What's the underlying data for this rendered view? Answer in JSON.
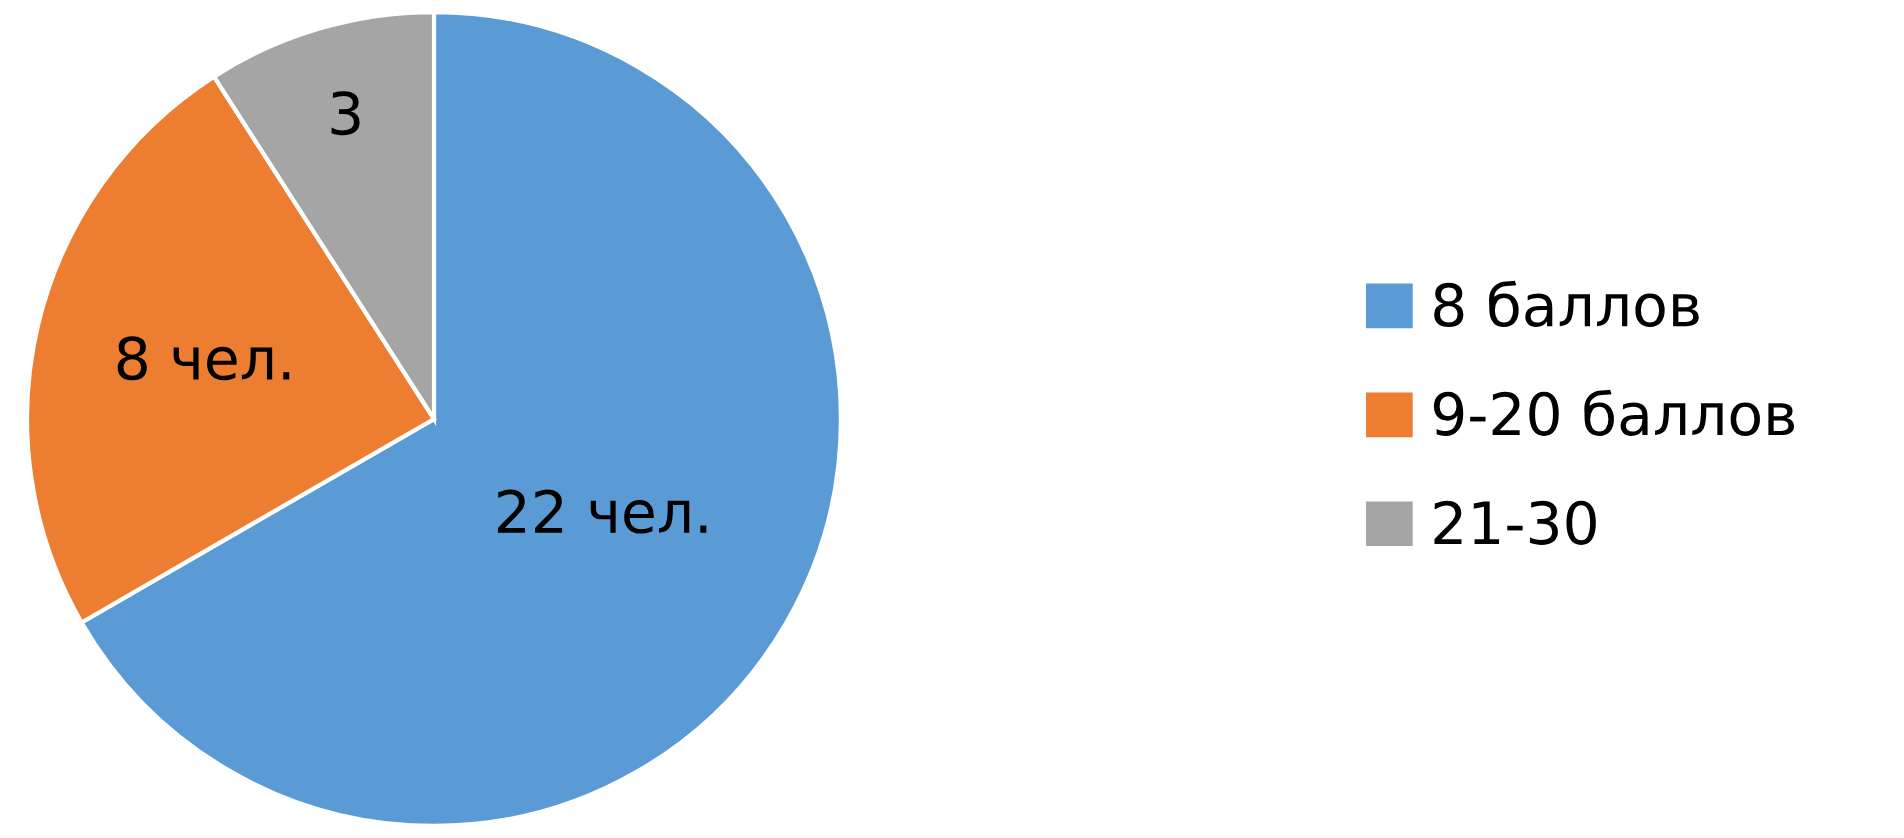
{
  "chart_data": {
    "type": "pie",
    "categories": [
      "8 баллов",
      "9-20 баллов",
      "21-30"
    ],
    "values": [
      22,
      8,
      3
    ],
    "colors": [
      "#5b9bd5",
      "#ed7d31",
      "#a5a5a5"
    ],
    "value_labels": [
      "22 чел.",
      "8 чел.",
      "3"
    ],
    "legend": "right"
  }
}
